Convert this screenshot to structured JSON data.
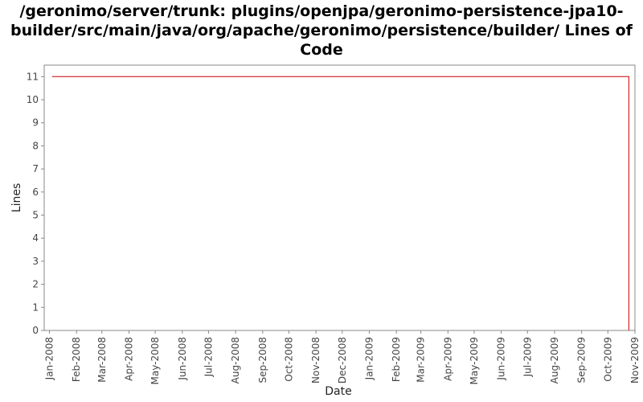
{
  "chart_data": {
    "type": "line",
    "title": "/geronimo/server/trunk: plugins/openjpa/geronimo-persistence-jpa10-builder/src/main/java/org/apache/geronimo/persistence/builder/ Lines of Code",
    "xlabel": "Date",
    "ylabel": "Lines",
    "x_ticks": [
      "Jan-2008",
      "Feb-2008",
      "Mar-2008",
      "Apr-2008",
      "May-2008",
      "Jun-2008",
      "Jul-2008",
      "Aug-2008",
      "Sep-2008",
      "Oct-2008",
      "Nov-2008",
      "Dec-2008",
      "Jan-2009",
      "Feb-2009",
      "Mar-2009",
      "Apr-2009",
      "May-2009",
      "Jun-2009",
      "Jul-2009",
      "Aug-2009",
      "Sep-2009",
      "Oct-2009",
      "Nov-2009"
    ],
    "y_ticks": [
      0,
      1,
      2,
      3,
      4,
      5,
      6,
      7,
      8,
      9,
      10,
      11
    ],
    "ylim": [
      0,
      11.5
    ],
    "xlim": [
      "2007-12-26",
      "2009-11-01"
    ],
    "grid": false,
    "series": [
      {
        "color": "#cc0000",
        "x": [
          "2008-01-04",
          "2009-10-25",
          "2009-10-25"
        ],
        "y": [
          11,
          11,
          0
        ]
      }
    ]
  }
}
